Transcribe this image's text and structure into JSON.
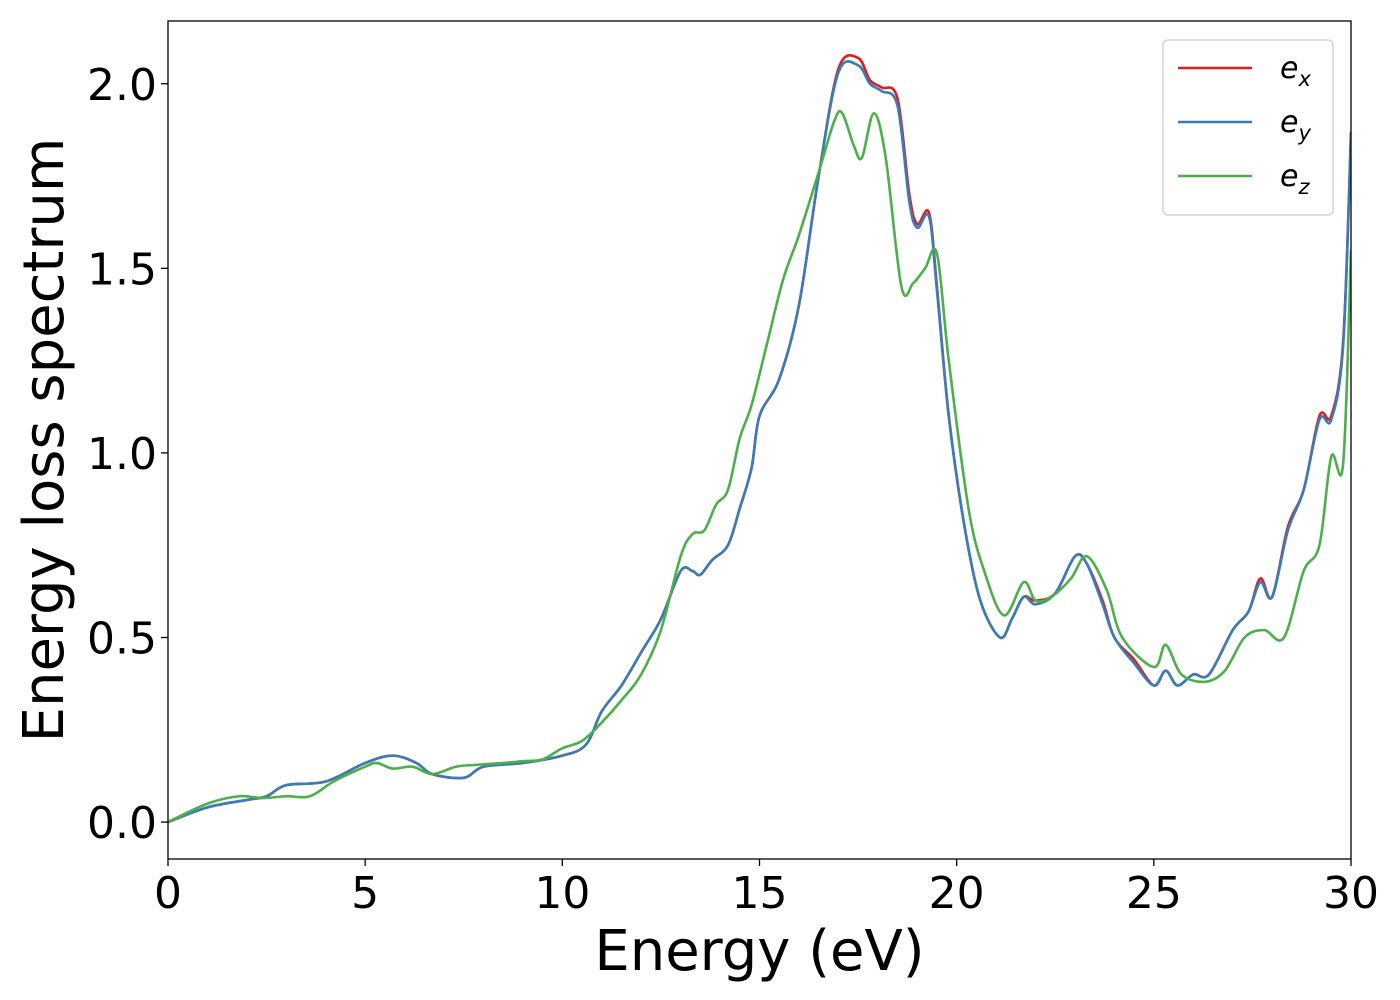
{
  "chart_data": {
    "type": "line",
    "title": "",
    "xlabel": "Energy (eV)",
    "ylabel": "Energy loss spectrum",
    "xlim": [
      0,
      30
    ],
    "ylim": [
      -0.1,
      2.17
    ],
    "xticks": [
      0,
      5,
      10,
      15,
      20,
      25,
      30
    ],
    "xtick_labels": [
      "0",
      "5",
      "10",
      "15",
      "20",
      "25",
      "30"
    ],
    "yticks": [
      0.0,
      0.5,
      1.0,
      1.5,
      2.0
    ],
    "ytick_labels": [
      "0.0",
      "0.5",
      "1.0",
      "1.5",
      "2.0"
    ],
    "grid": false,
    "legend_position": "top-right",
    "series": [
      {
        "name": "e",
        "sub": "x",
        "color": "#e41a1c",
        "x": [
          0,
          1,
          2,
          2.5,
          3,
          4,
          5,
          5.7,
          6.3,
          6.7,
          7.5,
          8,
          9,
          10,
          10.6,
          11,
          11.5,
          12,
          12.5,
          13,
          13.3,
          13.5,
          13.8,
          14.2,
          14.5,
          14.8,
          15,
          15.5,
          16,
          16.5,
          17,
          17.5,
          17.8,
          18.1,
          18.5,
          18.8,
          19,
          19.3,
          19.5,
          19.8,
          20.2,
          20.6,
          21.1,
          21.4,
          21.7,
          22,
          22.5,
          23,
          23.3,
          23.7,
          24,
          24.5,
          25,
          25.3,
          25.6,
          26,
          26.4,
          27,
          27.4,
          27.7,
          28,
          28.4,
          28.8,
          29.2,
          29.5,
          29.8,
          30
        ],
        "y": [
          0.0,
          0.04,
          0.06,
          0.07,
          0.1,
          0.11,
          0.16,
          0.18,
          0.16,
          0.13,
          0.12,
          0.15,
          0.16,
          0.18,
          0.21,
          0.3,
          0.37,
          0.46,
          0.55,
          0.68,
          0.68,
          0.67,
          0.71,
          0.75,
          0.85,
          0.96,
          1.1,
          1.2,
          1.4,
          1.75,
          2.04,
          2.07,
          2.01,
          1.99,
          1.96,
          1.7,
          1.62,
          1.65,
          1.45,
          1.1,
          0.8,
          0.6,
          0.5,
          0.55,
          0.61,
          0.6,
          0.62,
          0.72,
          0.7,
          0.6,
          0.5,
          0.44,
          0.37,
          0.41,
          0.37,
          0.4,
          0.4,
          0.52,
          0.57,
          0.66,
          0.61,
          0.8,
          0.9,
          1.1,
          1.1,
          1.3,
          1.87
        ]
      },
      {
        "name": "e",
        "sub": "y",
        "color": "#377eb8",
        "x": [
          0,
          1,
          2,
          2.5,
          3,
          4,
          5,
          5.7,
          6.3,
          6.7,
          7.5,
          8,
          9,
          10,
          10.6,
          11,
          11.5,
          12,
          12.5,
          13,
          13.3,
          13.5,
          13.8,
          14.2,
          14.5,
          14.8,
          15,
          15.5,
          16,
          16.5,
          17,
          17.5,
          17.8,
          18.1,
          18.5,
          18.8,
          19,
          19.3,
          19.5,
          19.8,
          20.2,
          20.6,
          21.1,
          21.4,
          21.7,
          22,
          22.5,
          23,
          23.3,
          23.7,
          24,
          24.5,
          25,
          25.3,
          25.6,
          26,
          26.4,
          27,
          27.4,
          27.7,
          28,
          28.4,
          28.8,
          29.2,
          29.5,
          29.8,
          30
        ],
        "y": [
          0.0,
          0.04,
          0.06,
          0.07,
          0.1,
          0.11,
          0.16,
          0.18,
          0.16,
          0.13,
          0.12,
          0.15,
          0.16,
          0.18,
          0.21,
          0.3,
          0.37,
          0.46,
          0.55,
          0.68,
          0.68,
          0.67,
          0.71,
          0.75,
          0.85,
          0.96,
          1.1,
          1.2,
          1.4,
          1.75,
          2.03,
          2.05,
          2.0,
          1.98,
          1.94,
          1.68,
          1.61,
          1.64,
          1.44,
          1.1,
          0.8,
          0.6,
          0.5,
          0.55,
          0.61,
          0.59,
          0.62,
          0.72,
          0.7,
          0.59,
          0.5,
          0.43,
          0.37,
          0.41,
          0.37,
          0.4,
          0.4,
          0.52,
          0.57,
          0.65,
          0.61,
          0.79,
          0.9,
          1.09,
          1.09,
          1.29,
          1.86
        ]
      },
      {
        "name": "e",
        "sub": "z",
        "color": "#4daf4a",
        "x": [
          0,
          1,
          1.8,
          2.4,
          3,
          3.6,
          4.2,
          5,
          5.3,
          5.7,
          6.2,
          6.7,
          7.3,
          7.8,
          8.5,
          9,
          9.5,
          10,
          10.5,
          11,
          11.5,
          12,
          12.5,
          13,
          13.3,
          13.6,
          13.9,
          14.2,
          14.5,
          14.8,
          15.2,
          15.6,
          16,
          16.5,
          16.9,
          17.1,
          17.4,
          17.6,
          17.9,
          18.2,
          18.6,
          18.9,
          19.2,
          19.5,
          19.8,
          20.3,
          20.7,
          21.2,
          21.7,
          22,
          22.4,
          22.9,
          23.3,
          23.8,
          24.2,
          25,
          25.3,
          25.7,
          26.3,
          26.8,
          27.3,
          27.8,
          28.3,
          28.8,
          29.2,
          29.5,
          29.8,
          30
        ],
        "y": [
          0.0,
          0.05,
          0.07,
          0.065,
          0.07,
          0.07,
          0.11,
          0.15,
          0.16,
          0.145,
          0.15,
          0.13,
          0.15,
          0.155,
          0.16,
          0.165,
          0.17,
          0.2,
          0.22,
          0.27,
          0.33,
          0.4,
          0.52,
          0.72,
          0.78,
          0.79,
          0.86,
          0.9,
          1.04,
          1.13,
          1.3,
          1.47,
          1.59,
          1.76,
          1.9,
          1.92,
          1.83,
          1.8,
          1.92,
          1.8,
          1.45,
          1.46,
          1.5,
          1.54,
          1.25,
          0.85,
          0.68,
          0.56,
          0.65,
          0.6,
          0.61,
          0.66,
          0.72,
          0.63,
          0.5,
          0.42,
          0.48,
          0.4,
          0.38,
          0.41,
          0.5,
          0.52,
          0.5,
          0.68,
          0.75,
          0.99,
          0.97,
          1.55
        ]
      }
    ]
  }
}
